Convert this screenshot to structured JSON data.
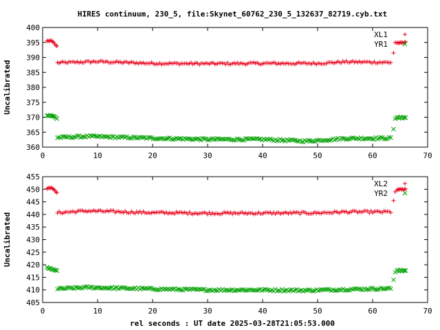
{
  "figure": {
    "title": "HIRES continuum, 230_5, file:Skynet_60762_230_5_132637_82719.cyb.txt",
    "xlabel": "rel seconds : UT date 2025-03-28T21:05:53.000"
  },
  "chart_data": [
    {
      "type": "scatter",
      "title": "HIRES continuum, 230_5, file:Skynet_60762_230_5_132637_82719.cyb.txt",
      "xlabel": "",
      "ylabel": "Uncalibrated",
      "xlim": [
        0,
        70
      ],
      "ylim": [
        360,
        400
      ],
      "xticks": [
        0,
        10,
        20,
        30,
        40,
        50,
        60,
        70
      ],
      "yticks": [
        360,
        365,
        370,
        375,
        380,
        385,
        390,
        395,
        400
      ],
      "legend_position": "top-right",
      "grid": false,
      "series": [
        {
          "name": "XL1",
          "marker": "plus",
          "color": "#e8001a",
          "segments": [
            {
              "x_start": 0.8,
              "x_end": 2.6,
              "step": 0.2,
              "values": [
                395.5,
                395.6,
                395.4,
                395.7,
                395.6,
                395.3,
                395.0,
                394.5,
                394.0,
                393.8
              ]
            },
            {
              "x_start": 2.7,
              "x_end": 63.5,
              "step": 0.3,
              "base": 388.2,
              "trend": [
                [
                  2.7,
                  388.2
                ],
                [
                  10,
                  388.6
                ],
                [
                  20,
                  388.0
                ],
                [
                  30,
                  387.9
                ],
                [
                  40,
                  388.0
                ],
                [
                  50,
                  388.0
                ],
                [
                  55,
                  388.5
                ],
                [
                  60,
                  388.4
                ],
                [
                  63.5,
                  388.3
                ]
              ],
              "noise": 0.35
            },
            {
              "x": [
                63.8,
                64.1
              ],
              "values": [
                391.5,
                395.0
              ]
            },
            {
              "x_start": 64.4,
              "x_end": 66.0,
              "step": 0.2,
              "values": [
                394.8,
                395.0,
                394.7,
                395.1,
                394.9,
                395.0,
                394.8,
                395.0,
                395.2
              ]
            }
          ]
        },
        {
          "name": "YR1",
          "marker": "cross",
          "color": "#00a000",
          "segments": [
            {
              "x_start": 0.8,
              "x_end": 2.6,
              "step": 0.2,
              "values": [
                370.5,
                370.6,
                370.4,
                370.7,
                370.5,
                370.4,
                370.3,
                370.2,
                369.8,
                369.5
              ]
            },
            {
              "x_start": 2.7,
              "x_end": 63.5,
              "step": 0.3,
              "base": 363.0,
              "trend": [
                [
                  2.7,
                  363.2
                ],
                [
                  8,
                  363.6
                ],
                [
                  20,
                  363.0
                ],
                [
                  30,
                  362.6
                ],
                [
                  40,
                  362.6
                ],
                [
                  48,
                  362.0
                ],
                [
                  55,
                  362.9
                ],
                [
                  63.5,
                  363.0
                ]
              ],
              "noise": 0.35
            },
            {
              "x": [
                63.8,
                64.1
              ],
              "values": [
                366.0,
                369.5
              ]
            },
            {
              "x_start": 64.4,
              "x_end": 66.0,
              "step": 0.2,
              "values": [
                369.8,
                370.0,
                369.7,
                370.1,
                369.9,
                369.6,
                370.0,
                369.8,
                369.9
              ]
            }
          ]
        }
      ]
    },
    {
      "type": "scatter",
      "title": "",
      "xlabel": "rel seconds : UT date 2025-03-28T21:05:53.000",
      "ylabel": "Uncalibrated",
      "xlim": [
        0,
        70
      ],
      "ylim": [
        405,
        455
      ],
      "xticks": [
        0,
        10,
        20,
        30,
        40,
        50,
        60,
        70
      ],
      "yticks": [
        405,
        410,
        415,
        420,
        425,
        430,
        435,
        440,
        445,
        450,
        455
      ],
      "legend_position": "top-right",
      "grid": false,
      "series": [
        {
          "name": "XL2",
          "marker": "plus",
          "color": "#e8001a",
          "segments": [
            {
              "x_start": 0.8,
              "x_end": 2.6,
              "step": 0.2,
              "values": [
                450.2,
                450.5,
                450.6,
                450.4,
                450.7,
                450.3,
                450.0,
                449.6,
                449.0,
                448.6
              ]
            },
            {
              "x_start": 2.7,
              "x_end": 63.5,
              "step": 0.3,
              "base": 440.9,
              "trend": [
                [
                  2.7,
                  440.7
                ],
                [
                  8,
                  441.4
                ],
                [
                  20,
                  440.7
                ],
                [
                  30,
                  440.5
                ],
                [
                  40,
                  440.5
                ],
                [
                  50,
                  440.6
                ],
                [
                  55,
                  441.0
                ],
                [
                  63.5,
                  441.0
                ]
              ],
              "noise": 0.45
            },
            {
              "x": [
                63.8,
                64.1
              ],
              "values": [
                445.5,
                449.0
              ]
            },
            {
              "x_start": 64.4,
              "x_end": 66.0,
              "step": 0.2,
              "values": [
                449.6,
                450.0,
                449.8,
                450.2,
                449.9,
                450.1,
                449.7,
                450.0,
                450.1
              ]
            }
          ]
        },
        {
          "name": "YR2",
          "marker": "cross",
          "color": "#00a000",
          "segments": [
            {
              "x_start": 0.8,
              "x_end": 2.6,
              "step": 0.2,
              "values": [
                419.0,
                418.6,
                418.4,
                418.7,
                418.3,
                418.0,
                418.2,
                417.8,
                417.9,
                417.6
              ]
            },
            {
              "x_start": 2.7,
              "x_end": 63.5,
              "step": 0.3,
              "base": 410.3,
              "trend": [
                [
                  2.7,
                  410.4
                ],
                [
                  8,
                  411.0
                ],
                [
                  20,
                  410.4
                ],
                [
                  30,
                  410.0
                ],
                [
                  40,
                  410.0
                ],
                [
                  48,
                  409.8
                ],
                [
                  55,
                  410.2
                ],
                [
                  63.5,
                  410.6
                ]
              ],
              "noise": 0.4
            },
            {
              "x": [
                63.8,
                64.1
              ],
              "values": [
                414.0,
                417.0
              ]
            },
            {
              "x_start": 64.4,
              "x_end": 66.0,
              "step": 0.2,
              "values": [
                417.6,
                417.9,
                417.5,
                418.0,
                417.7,
                417.4,
                417.8,
                417.6,
                417.7
              ]
            }
          ]
        }
      ]
    }
  ]
}
